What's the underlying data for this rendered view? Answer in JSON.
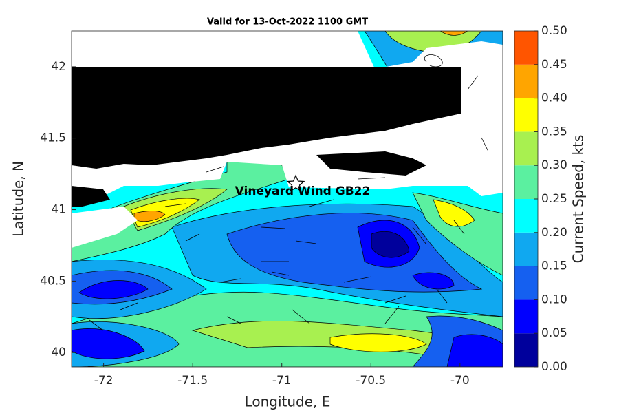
{
  "title": "Valid for 13-Oct-2022 1100 GMT",
  "x_label": "Longitude, E",
  "y_label": "Latitude, N",
  "xlim": [
    -72.18,
    -69.76
  ],
  "xticks": [
    -72,
    -71.5,
    -71,
    -70.5,
    -70
  ],
  "ylim": [
    39.9,
    42.25
  ],
  "yticks": [
    40,
    40.5,
    41,
    41.5,
    42
  ],
  "annotation": "Vineyard Wind GB22",
  "colorbar": {
    "label": "Current Speed, kts",
    "ticks": [
      {
        "value": 0,
        "label": "0.00"
      },
      0.05,
      {
        "value": 0.1,
        "label": "0.10"
      },
      0.15,
      {
        "value": 0.2,
        "label": "0.20"
      },
      0.25,
      {
        "value": 0.3,
        "label": "0.30"
      },
      0.35,
      {
        "value": 0.4,
        "label": "0.40"
      },
      0.45,
      {
        "value": 0.5,
        "label": "0.50"
      }
    ],
    "colors": [
      "#00009c",
      "#0000ff",
      "#1560f0",
      "#10a8f0",
      "#00ffff",
      "#5bf0a0",
      "#a8f050",
      "#ffff00",
      "#ffa500",
      "#ff5500"
    ]
  }
}
